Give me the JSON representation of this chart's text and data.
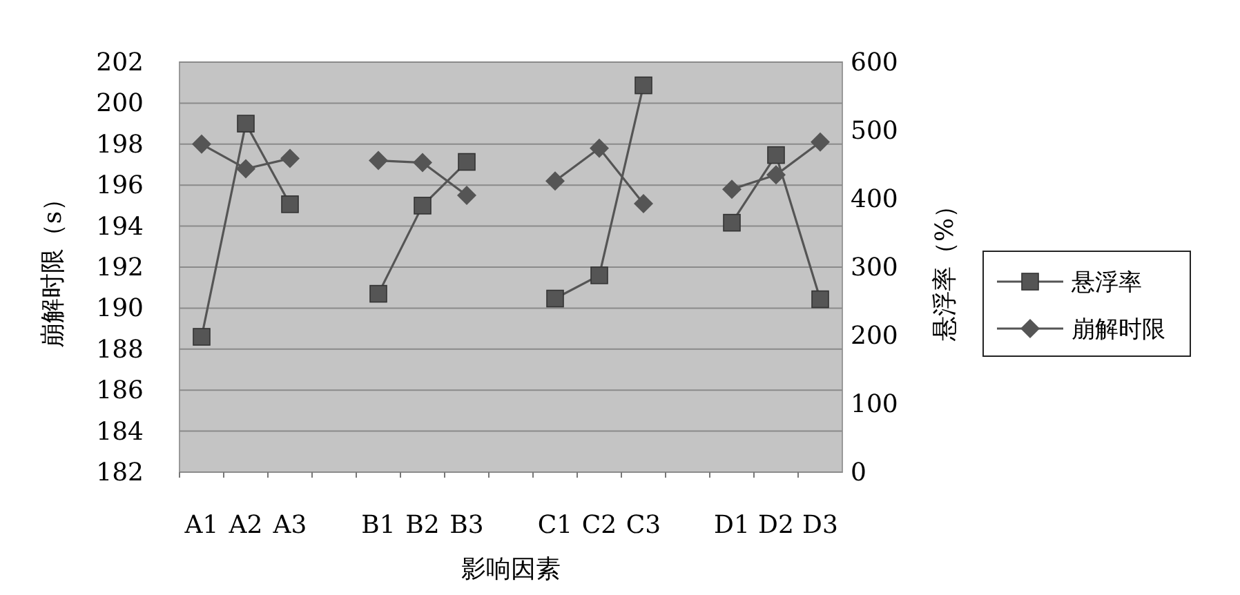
{
  "chart_data": {
    "type": "line",
    "xlabel": "影响因素",
    "ylabel": "崩解时限（s）",
    "y2label": "悬浮率（%）",
    "categories": [
      "A1",
      "A2",
      "A3",
      null,
      "B1",
      "B2",
      "B3",
      null,
      "C1",
      "C2",
      "C3",
      null,
      "D1",
      "D2",
      "D3"
    ],
    "series": [
      {
        "name": "悬浮率",
        "color": "#555555",
        "marker": "square",
        "axis": "y2",
        "values": [
          198,
          510,
          392,
          null,
          261,
          390,
          454,
          null,
          254,
          288,
          566,
          null,
          365,
          464,
          253
        ]
      },
      {
        "name": "崩解时限",
        "color": "#555555",
        "marker": "diamond",
        "values": [
          198.0,
          196.8,
          197.3,
          null,
          197.2,
          197.1,
          195.5,
          null,
          196.2,
          197.8,
          195.1,
          null,
          195.8,
          196.5,
          198.1
        ]
      }
    ],
    "ylim": [
      182,
      202
    ],
    "yticks": [
      182,
      184,
      186,
      188,
      190,
      192,
      194,
      196,
      198,
      200,
      202
    ],
    "y2lim": [
      0,
      600
    ],
    "y2ticks": [
      0,
      100,
      200,
      300,
      400,
      500,
      600
    ],
    "grid": "y",
    "legend": "right"
  }
}
